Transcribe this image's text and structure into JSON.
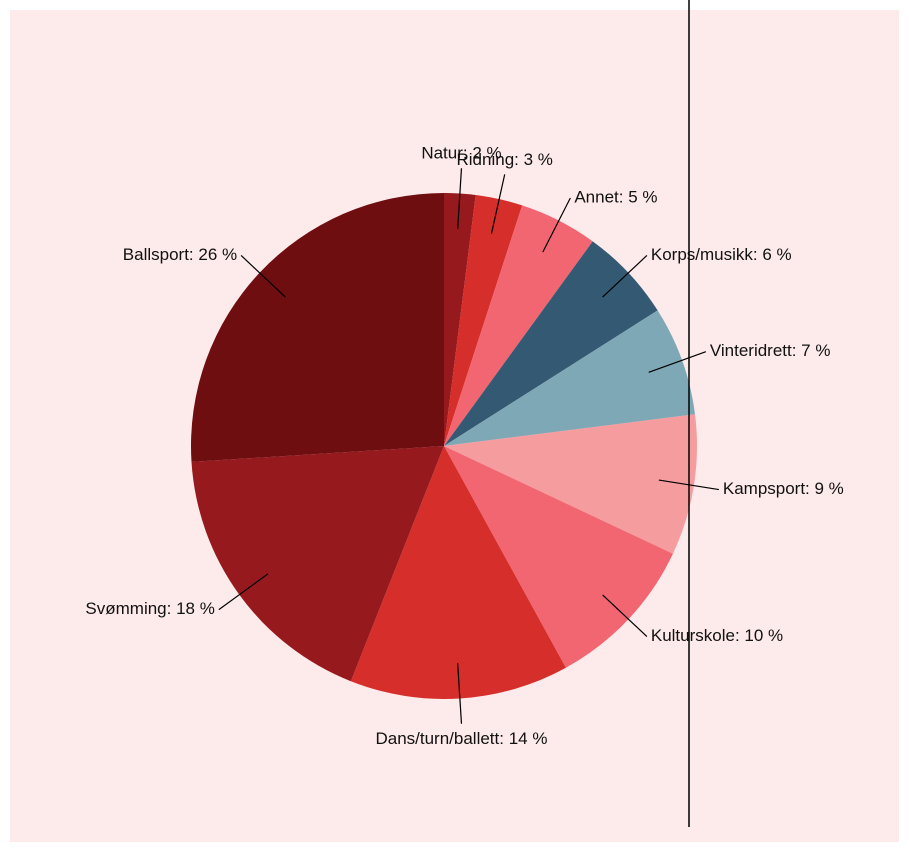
{
  "chart_data": {
    "type": "pie",
    "values": [
      2,
      3,
      5,
      6,
      7,
      9,
      10,
      14,
      18,
      26
    ],
    "value_labels": [
      "Natur: 2 %",
      "Ridning: 3 %",
      "Annet: 5 %",
      "Korps/musikk: 6 %",
      "Vinteridrett: 7 %",
      "Kampsport: 9 %",
      "Kulturskole: 10 %",
      "Dans/turn/ballett: 14 %",
      "Svømming: 18 %",
      "Ballsport: 26 %"
    ],
    "colors": [
      "#96191e",
      "#d62e2a",
      "#f26672",
      "#345a73",
      "#7fa8b7",
      "#f59c9f",
      "#f26672",
      "#d62e2a",
      "#96191e",
      "#6e0e10"
    ]
  }
}
